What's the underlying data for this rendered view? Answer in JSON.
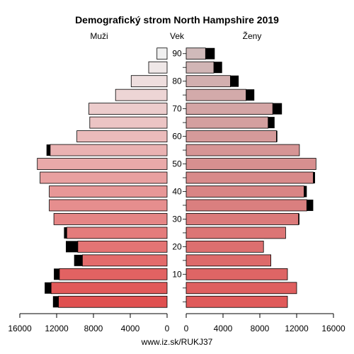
{
  "chart_data": {
    "type": "bar",
    "title": "Demografický strom North Hampshire 2019",
    "left_label": "Muži",
    "center_label": "Vek",
    "right_label": "Ženy",
    "footer": "www.iz.sk/RUKJ37",
    "xlim": [
      0,
      16000
    ],
    "x_ticks": [
      0,
      4000,
      8000,
      12000,
      16000
    ],
    "x_tick_labels": [
      "0",
      "4000",
      "8000",
      "12000",
      "16000"
    ],
    "age_groups": [
      "0-4",
      "5-9",
      "10-14",
      "15-19",
      "20-24",
      "25-29",
      "30-34",
      "35-39",
      "40-44",
      "45-49",
      "50-54",
      "55-59",
      "60-64",
      "65-69",
      "70-74",
      "75-79",
      "80-84",
      "85-89",
      "90+"
    ],
    "age_ticks": [
      10,
      20,
      30,
      40,
      50,
      60,
      70,
      80,
      90
    ],
    "series": [
      {
        "name": "Muži",
        "values": [
          11800,
          12600,
          11700,
          9200,
          9700,
          10900,
          12300,
          12800,
          12800,
          13800,
          14100,
          12700,
          9800,
          8400,
          8500,
          5600,
          3900,
          2000,
          1100
        ],
        "excess": [
          600,
          700,
          600,
          900,
          1300,
          300,
          0,
          0,
          0,
          0,
          0,
          400,
          0,
          0,
          0,
          0,
          0,
          0,
          0
        ]
      },
      {
        "name": "Ženy",
        "values": [
          11000,
          12000,
          11000,
          9200,
          8400,
          10800,
          12200,
          13100,
          12800,
          13800,
          14100,
          12300,
          9800,
          8900,
          9400,
          6500,
          4800,
          3000,
          2100
        ],
        "excess": [
          0,
          0,
          0,
          0,
          0,
          0,
          100,
          700,
          300,
          200,
          0,
          0,
          100,
          700,
          1000,
          900,
          900,
          900,
          1000
        ]
      }
    ],
    "colors": {
      "male_base": "#e05050",
      "male_top": "#f0f0f0",
      "female_base": "#e05a5a",
      "female_top": "#d0baba",
      "excess": "#000000"
    }
  }
}
